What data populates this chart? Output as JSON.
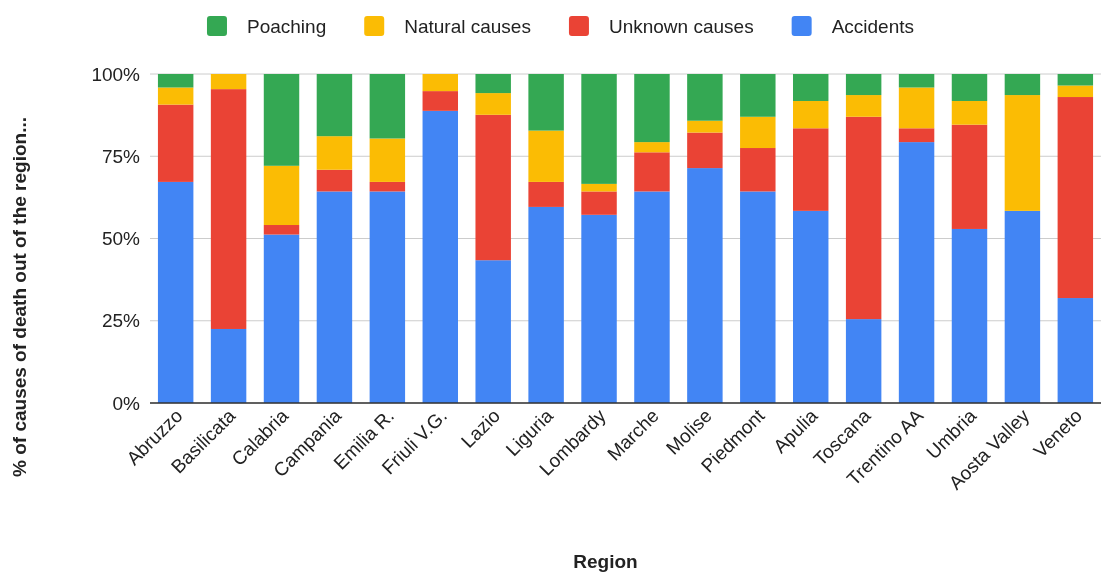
{
  "chart_data": {
    "type": "bar",
    "stacked": true,
    "xlabel": "Region",
    "ylabel": "% of causes of death out of the region...",
    "categories": [
      "Abruzzo",
      "Basilicata",
      "Calabria",
      "Campania",
      "Emilia R.",
      "Friuli V.G.",
      "Lazio",
      "Liguria",
      "Lombardy",
      "Marche",
      "Molise",
      "Piedmont",
      "Apulia",
      "Toscana",
      "Trentino AA",
      "Umbria",
      "Aosta Valley",
      "Veneto"
    ],
    "series": [
      {
        "name": "Accidents",
        "color": "#4285f4",
        "values": [
          67.2,
          22.5,
          51.2,
          64.3,
          64.3,
          88.8,
          43.4,
          59.6,
          57.2,
          64.3,
          71.4,
          64.3,
          58.4,
          25.5,
          79.3,
          52.9,
          58.4,
          31.9
        ]
      },
      {
        "name": "Unknown causes",
        "color": "#ea4335",
        "values": [
          23.5,
          72.9,
          2.9,
          6.6,
          2.9,
          6.0,
          44.2,
          7.6,
          7.1,
          11.9,
          10.8,
          13.2,
          25.1,
          61.5,
          4.2,
          31.7,
          0,
          61.1
        ]
      },
      {
        "name": "Natural causes",
        "color": "#fbbc04",
        "values": [
          5.2,
          4.6,
          18.0,
          10.2,
          13.2,
          5.2,
          6.6,
          15.6,
          2.3,
          3.1,
          3.6,
          9.5,
          8.3,
          6.6,
          12.4,
          7.2,
          35.2,
          3.5
        ]
      },
      {
        "name": "Poaching",
        "color": "#34a853",
        "values": [
          4.1,
          0,
          27.9,
          18.9,
          19.6,
          0,
          5.8,
          17.2,
          33.4,
          20.7,
          14.2,
          13.0,
          8.2,
          6.4,
          4.1,
          8.2,
          6.4,
          3.5
        ]
      }
    ],
    "ylim": [
      0,
      100
    ],
    "yticks": [
      {
        "value": 0,
        "label": "0%"
      },
      {
        "value": 25,
        "label": "25%"
      },
      {
        "value": 50,
        "label": "50%"
      },
      {
        "value": 75,
        "label": "75%"
      },
      {
        "value": 100,
        "label": "100%"
      }
    ],
    "grid": "y",
    "legend": "top"
  }
}
